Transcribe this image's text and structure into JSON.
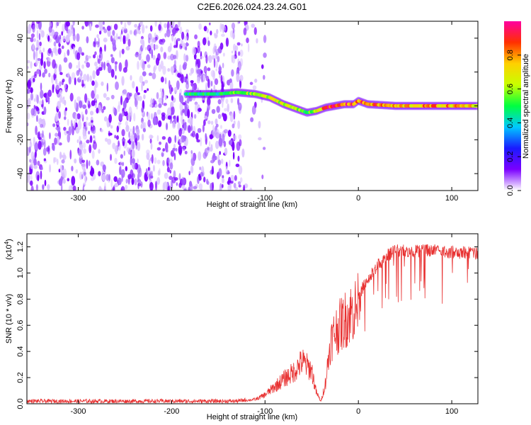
{
  "title": "C2E6.2026.024.23.24.G01",
  "chart_data": [
    {
      "type": "heatmap",
      "name": "spectrogram",
      "xlabel": "Height of straight line (km)",
      "ylabel": "Frequency (Hz)",
      "xlim": [
        -355,
        128
      ],
      "ylim": [
        -50,
        50
      ],
      "xticks": [
        -300,
        -200,
        -100,
        0,
        100
      ],
      "yticks": [
        -40,
        -20,
        0,
        20,
        40
      ],
      "xtick_labels": [
        "-300",
        "-200",
        "-100",
        "0",
        "100"
      ],
      "ytick_labels": [
        "-40",
        "-20",
        "0",
        "20",
        "40"
      ],
      "colorbar": {
        "label": "Normalized spectral amplitude",
        "range": [
          0.0,
          1.0
        ],
        "ticks": [
          0.0,
          0.2,
          0.4,
          0.6,
          0.8
        ],
        "tick_labels": [
          "0.0",
          "0.2",
          "0.4",
          "0.6",
          "0.8"
        ],
        "colors": [
          "#ffffff",
          "#7b00ff",
          "#1a1aff",
          "#00c8ff",
          "#00ff40",
          "#c8ff00",
          "#ffd000",
          "#ff3000",
          "#ff00a0"
        ]
      },
      "signal_track": {
        "height_km": [
          -185,
          -150,
          -130,
          -110,
          -95,
          -80,
          -65,
          -55,
          -45,
          -35,
          -25,
          -15,
          -5,
          0,
          10,
          40,
          80,
          128
        ],
        "freq_hz": [
          7,
          7,
          8,
          7,
          5,
          1,
          -2,
          -4,
          -3,
          -1,
          0,
          1,
          1,
          3,
          1,
          0,
          0,
          0
        ],
        "amplitude": [
          0.5,
          0.45,
          0.55,
          0.6,
          0.65,
          0.7,
          0.6,
          0.5,
          0.7,
          0.85,
          0.9,
          0.85,
          0.9,
          0.8,
          0.85,
          0.75,
          0.8,
          0.75
        ]
      },
      "noise_region_km": [
        -355,
        -125
      ]
    },
    {
      "type": "line",
      "name": "snr",
      "xlabel": "Height of straight line (km)",
      "ylabel": "SNR (10 * v/v)",
      "y_scale_label": "(x10",
      "y_scale_exponent": "4",
      "xlim": [
        -355,
        128
      ],
      "ylim": [
        0.0,
        1.3
      ],
      "xticks": [
        -300,
        -200,
        -100,
        0,
        100
      ],
      "yticks": [
        0.0,
        0.2,
        0.4,
        0.6,
        0.8,
        1.0,
        1.2
      ],
      "xtick_labels": [
        "-300",
        "-200",
        "-100",
        "0",
        "100"
      ],
      "ytick_labels": [
        "0.0",
        "0.2",
        "0.4",
        "0.6",
        "0.8",
        "1.0",
        "1.2"
      ],
      "color": "#e83030",
      "series": [
        {
          "name": "SNR",
          "x": [
            -355,
            -300,
            -200,
            -130,
            -110,
            -100,
            -90,
            -80,
            -70,
            -60,
            -50,
            -45,
            -40,
            -35,
            -30,
            -25,
            -20,
            -10,
            0,
            10,
            20,
            30,
            40,
            60,
            80,
            100,
            128
          ],
          "y": [
            0.02,
            0.02,
            0.02,
            0.02,
            0.04,
            0.08,
            0.15,
            0.22,
            0.28,
            0.38,
            0.3,
            0.1,
            0.02,
            0.2,
            0.55,
            0.65,
            0.7,
            0.8,
            0.88,
            1.0,
            1.1,
            1.18,
            1.22,
            1.22,
            1.22,
            1.21,
            1.2
          ]
        }
      ]
    }
  ]
}
